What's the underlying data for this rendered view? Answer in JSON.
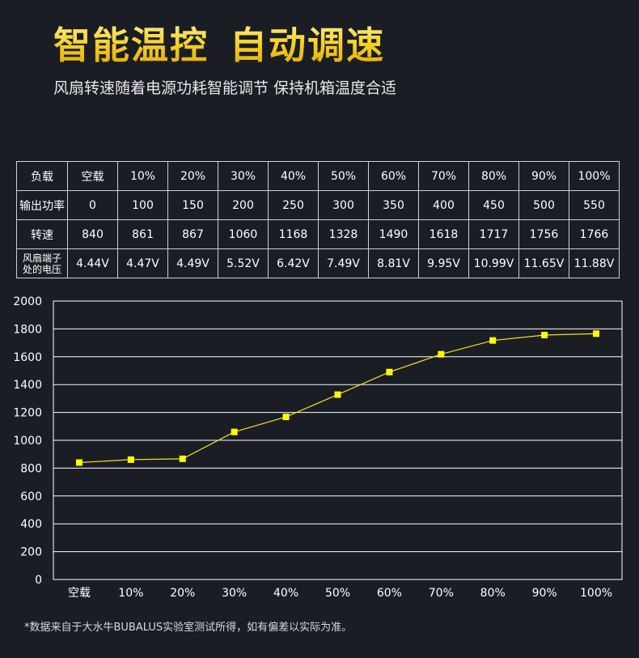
{
  "header": {
    "title_part1": "智能温控",
    "title_part2": "自动调速",
    "subtitle": "风扇转速随着电源功耗智能调节 保持机箱温度合适"
  },
  "table": {
    "rows": [
      {
        "head": "负载",
        "cells": [
          "空载",
          "10%",
          "20%",
          "30%",
          "40%",
          "50%",
          "60%",
          "70%",
          "80%",
          "90%",
          "100%"
        ]
      },
      {
        "head": "输出功率",
        "cells": [
          "0",
          "100",
          "150",
          "200",
          "250",
          "300",
          "350",
          "400",
          "450",
          "500",
          "550"
        ]
      },
      {
        "head": "转速",
        "cells": [
          "840",
          "861",
          "867",
          "1060",
          "1168",
          "1328",
          "1490",
          "1618",
          "1717",
          "1756",
          "1766"
        ]
      },
      {
        "head_line1": "风扇端子",
        "head_line2": "处的电压",
        "cells": [
          "4.44V",
          "4.47V",
          "4.49V",
          "5.52V",
          "6.42V",
          "7.49V",
          "8.81V",
          "9.95V",
          "10.99V",
          "11.65V",
          "11.88V"
        ]
      }
    ]
  },
  "chart_data": {
    "type": "line",
    "categories": [
      "空载",
      "10%",
      "20%",
      "30%",
      "40%",
      "50%",
      "60%",
      "70%",
      "80%",
      "90%",
      "100%"
    ],
    "series": [
      {
        "values": [
          840,
          861,
          867,
          1060,
          1168,
          1328,
          1490,
          1618,
          1717,
          1756,
          1766
        ]
      }
    ],
    "ylim": [
      0,
      2000
    ],
    "yticks": [
      0,
      200,
      400,
      600,
      800,
      1000,
      1200,
      1400,
      1600,
      1800,
      2000
    ],
    "grid": true,
    "line_color": "#f2e21b",
    "marker_color": "#ffff00"
  },
  "footnote": "*数据来自于大水牛BUBALUS实验室测试所得，如有偏差以实际为准。"
}
